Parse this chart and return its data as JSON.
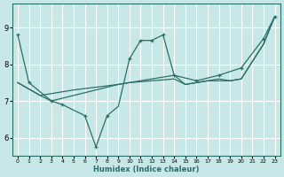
{
  "xlabel": "Humidex (Indice chaleur)",
  "bg_color": "#c8e8e8",
  "grid_color": "#ffffff",
  "line_color": "#2a6e68",
  "xlim": [
    -0.5,
    23.5
  ],
  "ylim": [
    5.5,
    9.65
  ],
  "yticks": [
    6,
    7,
    8,
    9
  ],
  "xtick_labels": [
    "0",
    "1",
    "2",
    "3",
    "4",
    "5",
    "6",
    "7",
    "8",
    "9",
    "10",
    "11",
    "12",
    "13",
    "14",
    "15",
    "16",
    "17",
    "18",
    "19",
    "20",
    "21",
    "22",
    "23"
  ],
  "xticks": [
    0,
    1,
    2,
    3,
    4,
    5,
    6,
    7,
    8,
    9,
    10,
    11,
    12,
    13,
    14,
    15,
    16,
    17,
    18,
    19,
    20,
    21,
    22,
    23
  ],
  "series_zigzag": {
    "segments": [
      {
        "x": [
          0,
          1
        ],
        "y": [
          8.8,
          7.5
        ]
      },
      {
        "x": [
          1,
          3,
          4,
          6,
          7,
          8,
          9,
          10,
          11,
          12,
          13,
          14,
          16,
          18,
          20,
          22,
          23
        ],
        "y": [
          7.5,
          7.0,
          6.9,
          6.6,
          5.75,
          6.6,
          6.85,
          8.15,
          8.65,
          8.65,
          8.8,
          7.7,
          7.55,
          7.7,
          7.9,
          8.7,
          9.3
        ]
      }
    ],
    "marker_x": [
      0,
      1,
      3,
      4,
      6,
      7,
      8,
      10,
      11,
      12,
      13,
      14,
      16,
      18,
      20,
      22,
      23
    ],
    "marker_y": [
      8.8,
      7.5,
      7.0,
      6.9,
      6.6,
      5.75,
      6.6,
      8.15,
      8.65,
      8.65,
      8.8,
      7.7,
      7.55,
      7.7,
      7.9,
      8.7,
      9.3
    ]
  },
  "series_upper": {
    "x": [
      0,
      2,
      5,
      9,
      10,
      14,
      15,
      17,
      19,
      20,
      22,
      23
    ],
    "y": [
      7.5,
      7.15,
      7.3,
      7.45,
      7.5,
      7.6,
      7.45,
      7.55,
      7.55,
      7.6,
      8.55,
      9.3
    ]
  },
  "series_lower": {
    "x": [
      0,
      2,
      3,
      9,
      10,
      11,
      12,
      13,
      14,
      15,
      16,
      17,
      18,
      19,
      20,
      22,
      23
    ],
    "y": [
      7.5,
      7.15,
      7.0,
      7.45,
      7.5,
      7.55,
      7.6,
      7.65,
      7.7,
      7.45,
      7.5,
      7.55,
      7.6,
      7.55,
      7.6,
      8.55,
      9.3
    ]
  }
}
